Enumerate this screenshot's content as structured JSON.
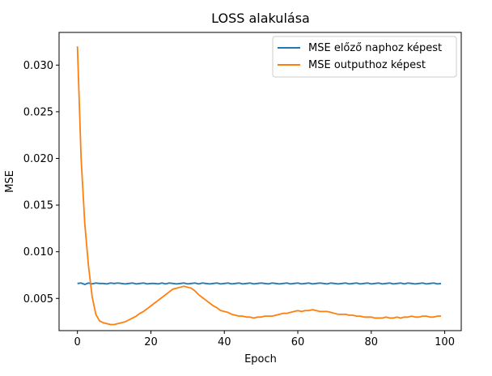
{
  "chart_data": {
    "type": "line",
    "title": "LOSS alakulása",
    "xlabel": "Epoch",
    "ylabel": "MSE",
    "xlim": [
      -5,
      104.5
    ],
    "ylim": [
      0.00155,
      0.0335
    ],
    "xticks": [
      0,
      20,
      40,
      60,
      80,
      100
    ],
    "xtick_labels": [
      "0",
      "20",
      "40",
      "60",
      "80",
      "100"
    ],
    "yticks": [
      0.005,
      0.01,
      0.015,
      0.02,
      0.025,
      0.03
    ],
    "ytick_labels": [
      "0.005",
      "0.010",
      "0.015",
      "0.020",
      "0.025",
      "0.030"
    ],
    "grid": false,
    "legend_position": "top-right",
    "series": [
      {
        "name": "MSE előző naphoz képest",
        "color": "#1f77b4",
        "values": [
          0.0066,
          0.00665,
          0.0065,
          0.00665,
          0.00655,
          0.00665,
          0.0066,
          0.0066,
          0.00655,
          0.00665,
          0.0066,
          0.00665,
          0.0066,
          0.00655,
          0.0066,
          0.00665,
          0.00655,
          0.0066,
          0.00665,
          0.00655,
          0.0066,
          0.0066,
          0.00655,
          0.00665,
          0.00655,
          0.00665,
          0.0066,
          0.00655,
          0.0066,
          0.00665,
          0.00655,
          0.0066,
          0.00665,
          0.00655,
          0.00665,
          0.0066,
          0.00655,
          0.0066,
          0.00665,
          0.00655,
          0.0066,
          0.00665,
          0.00655,
          0.0066,
          0.00665,
          0.00655,
          0.0066,
          0.00665,
          0.00655,
          0.0066,
          0.00665,
          0.0066,
          0.00655,
          0.00665,
          0.0066,
          0.00655,
          0.0066,
          0.00665,
          0.00655,
          0.0066,
          0.00665,
          0.00655,
          0.0066,
          0.00665,
          0.00655,
          0.0066,
          0.00665,
          0.0066,
          0.00655,
          0.00665,
          0.0066,
          0.00655,
          0.0066,
          0.00665,
          0.00655,
          0.0066,
          0.00665,
          0.00655,
          0.0066,
          0.00665,
          0.00655,
          0.0066,
          0.00665,
          0.00655,
          0.0066,
          0.00665,
          0.00655,
          0.0066,
          0.00665,
          0.00655,
          0.00665,
          0.0066,
          0.00655,
          0.0066,
          0.00665,
          0.00655,
          0.0066,
          0.00665,
          0.00655,
          0.0066
        ]
      },
      {
        "name": "MSE outputhoz képest",
        "color": "#ff7f0e",
        "values": [
          0.032,
          0.02,
          0.013,
          0.0085,
          0.0052,
          0.0033,
          0.0026,
          0.0024,
          0.0023,
          0.0022,
          0.0022,
          0.0023,
          0.0024,
          0.0025,
          0.0027,
          0.0029,
          0.0031,
          0.0034,
          0.0036,
          0.0039,
          0.0042,
          0.0045,
          0.0048,
          0.0051,
          0.0054,
          0.0057,
          0.006,
          0.0061,
          0.0062,
          0.0063,
          0.0062,
          0.0061,
          0.0058,
          0.0054,
          0.0051,
          0.0048,
          0.0045,
          0.0042,
          0.004,
          0.0037,
          0.0036,
          0.0035,
          0.0033,
          0.0032,
          0.0031,
          0.0031,
          0.003,
          0.003,
          0.0029,
          0.003,
          0.003,
          0.0031,
          0.0031,
          0.0031,
          0.0032,
          0.0033,
          0.0034,
          0.0034,
          0.0035,
          0.0036,
          0.0037,
          0.0036,
          0.0037,
          0.0037,
          0.0038,
          0.0037,
          0.0036,
          0.0036,
          0.0036,
          0.0035,
          0.0034,
          0.0033,
          0.0033,
          0.0033,
          0.0032,
          0.0032,
          0.0031,
          0.0031,
          0.003,
          0.003,
          0.003,
          0.0029,
          0.0029,
          0.0029,
          0.003,
          0.0029,
          0.0029,
          0.003,
          0.0029,
          0.003,
          0.003,
          0.0031,
          0.003,
          0.003,
          0.0031,
          0.0031,
          0.003,
          0.003,
          0.0031,
          0.0031
        ]
      }
    ]
  }
}
